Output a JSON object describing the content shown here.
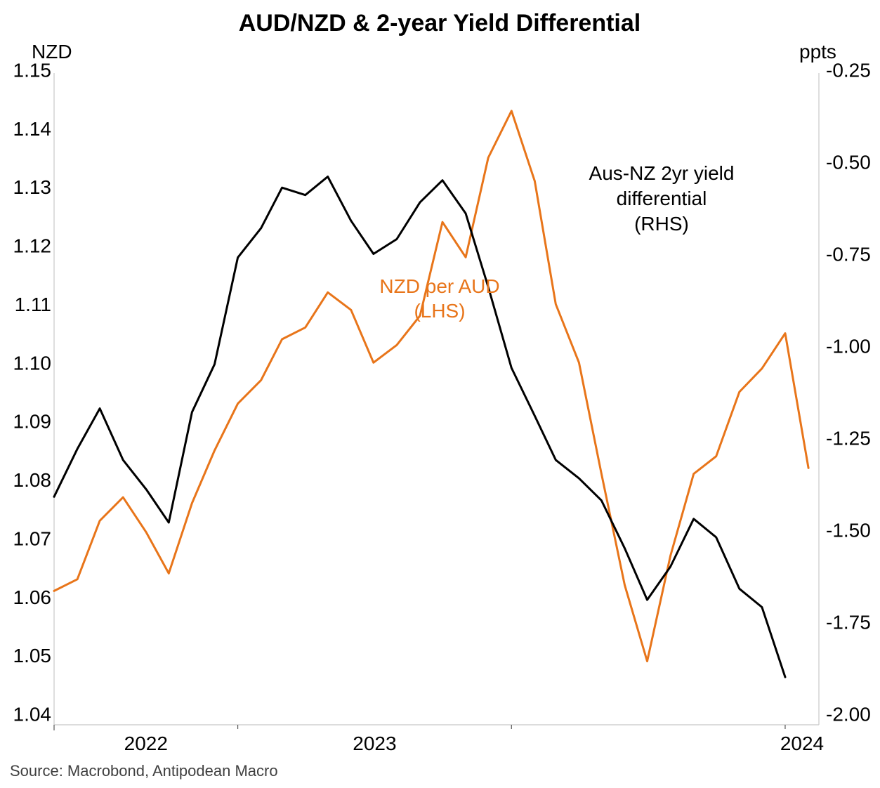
{
  "chart_data": {
    "type": "line",
    "title": "AUD/NZD & 2-year Yield Differential",
    "y_left": {
      "unit_label": "NZD",
      "range": [
        1.04,
        1.15
      ],
      "ticks": [
        "1.04",
        "1.05",
        "1.06",
        "1.07",
        "1.08",
        "1.09",
        "1.10",
        "1.11",
        "1.12",
        "1.13",
        "1.14",
        "1.15"
      ]
    },
    "y_right": {
      "unit_label": "ppts",
      "range": [
        -2.0,
        -0.25
      ],
      "ticks": [
        "-2.00",
        "-1.75",
        "-1.50",
        "-1.25",
        "-1.00",
        "-0.75",
        "-0.50",
        "-0.25"
      ]
    },
    "x_axis": {
      "range": [
        "2021-05-01",
        "2024-02-15"
      ],
      "year_labels": [
        {
          "label": "2022",
          "date": "2022-01-01"
        },
        {
          "label": "2023",
          "date": "2023-01-01"
        },
        {
          "label": "2024",
          "date": "2024-01-01"
        }
      ]
    },
    "grid": false,
    "colors": {
      "nzd_per_aud": "#E8751A",
      "yield_diff": "#000000"
    },
    "series": [
      {
        "name": "NZD per AUD (LHS)",
        "axis": "left",
        "color": "#E8751A",
        "points": [
          [
            "2021-05-01",
            1.061
          ],
          [
            "2021-06-01",
            1.063
          ],
          [
            "2021-07-01",
            1.073
          ],
          [
            "2021-08-01",
            1.077
          ],
          [
            "2021-09-01",
            1.071
          ],
          [
            "2021-10-01",
            1.064
          ],
          [
            "2021-11-01",
            1.076
          ],
          [
            "2021-12-01",
            1.085
          ],
          [
            "2022-01-01",
            1.093
          ],
          [
            "2022-02-01",
            1.097
          ],
          [
            "2022-03-01",
            1.104
          ],
          [
            "2022-04-01",
            1.106
          ],
          [
            "2022-05-01",
            1.112
          ],
          [
            "2022-06-01",
            1.109
          ],
          [
            "2022-07-01",
            1.1
          ],
          [
            "2022-08-01",
            1.103
          ],
          [
            "2022-09-01",
            1.108
          ],
          [
            "2022-10-01",
            1.124
          ],
          [
            "2022-11-01",
            1.118
          ],
          [
            "2022-12-01",
            1.135
          ],
          [
            "2023-01-01",
            1.143
          ],
          [
            "2023-02-01",
            1.131
          ],
          [
            "2023-03-01",
            1.11
          ],
          [
            "2023-04-01",
            1.1
          ],
          [
            "2023-05-01",
            1.081
          ],
          [
            "2023-06-01",
            1.062
          ],
          [
            "2023-07-01",
            1.049
          ],
          [
            "2023-08-01",
            1.067
          ],
          [
            "2023-09-01",
            1.081
          ],
          [
            "2023-10-01",
            1.084
          ],
          [
            "2023-11-01",
            1.095
          ],
          [
            "2023-12-01",
            1.099
          ],
          [
            "2024-01-01",
            1.105
          ],
          [
            "2024-02-01",
            1.082
          ]
        ]
      },
      {
        "name": "Aus-NZ 2yr yield differential (RHS)",
        "axis": "right",
        "color": "#000000",
        "points": [
          [
            "2021-05-01",
            -1.41
          ],
          [
            "2021-06-01",
            -1.28
          ],
          [
            "2021-07-01",
            -1.17
          ],
          [
            "2021-08-01",
            -1.31
          ],
          [
            "2021-09-01",
            -1.39
          ],
          [
            "2021-10-01",
            -1.48
          ],
          [
            "2021-11-01",
            -1.18
          ],
          [
            "2021-12-01",
            -1.05
          ],
          [
            "2022-01-01",
            -0.76
          ],
          [
            "2022-02-01",
            -0.68
          ],
          [
            "2022-03-01",
            -0.57
          ],
          [
            "2022-04-01",
            -0.59
          ],
          [
            "2022-05-01",
            -0.54
          ],
          [
            "2022-06-01",
            -0.66
          ],
          [
            "2022-07-01",
            -0.75
          ],
          [
            "2022-08-01",
            -0.71
          ],
          [
            "2022-09-01",
            -0.61
          ],
          [
            "2022-10-01",
            -0.55
          ],
          [
            "2022-11-01",
            -0.64
          ],
          [
            "2022-12-01",
            -0.84
          ],
          [
            "2023-01-01",
            -1.06
          ],
          [
            "2023-02-01",
            -1.19
          ],
          [
            "2023-03-01",
            -1.31
          ],
          [
            "2023-04-01",
            -1.36
          ],
          [
            "2023-05-01",
            -1.42
          ],
          [
            "2023-06-01",
            -1.55
          ],
          [
            "2023-07-01",
            -1.69
          ],
          [
            "2023-08-01",
            -1.6
          ],
          [
            "2023-09-01",
            -1.47
          ],
          [
            "2023-10-01",
            -1.52
          ],
          [
            "2023-11-01",
            -1.66
          ],
          [
            "2023-12-01",
            -1.71
          ],
          [
            "2024-01-01",
            -1.9
          ]
        ]
      }
    ],
    "annotations": {
      "nzd": {
        "line1": "NZD per AUD",
        "line2": "(LHS)"
      },
      "yield": {
        "line1": "Aus-NZ 2yr yield",
        "line2": "differential",
        "line3": "(RHS)"
      }
    },
    "source": "Source: Macrobond, Antipodean Macro"
  }
}
